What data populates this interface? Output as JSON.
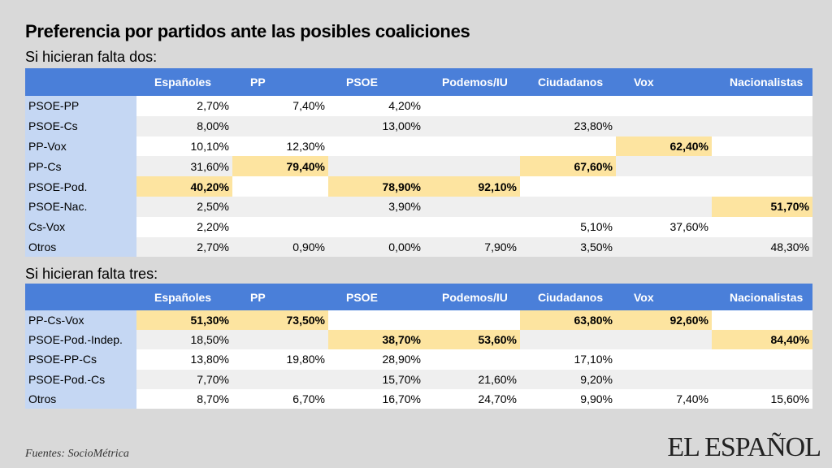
{
  "title": "Preferencia por partidos ante las posibles coaliciones",
  "chart_data": [
    {
      "type": "table",
      "subtitle": "Si hicieran falta dos:",
      "columns": [
        "Españoles",
        "PP",
        "PSOE",
        "Podemos/IU",
        "Ciudadanos",
        "Vox",
        "Nacionalistas"
      ],
      "rows": [
        {
          "label": "PSOE-PP",
          "values": [
            "2,70%",
            "7,40%",
            "4,20%",
            "",
            "",
            "",
            ""
          ],
          "highlight": [
            false,
            false,
            false,
            false,
            false,
            false,
            false
          ]
        },
        {
          "label": "PSOE-Cs",
          "values": [
            "8,00%",
            "",
            "13,00%",
            "",
            "23,80%",
            "",
            ""
          ],
          "highlight": [
            false,
            false,
            false,
            false,
            false,
            false,
            false
          ]
        },
        {
          "label": "PP-Vox",
          "values": [
            "10,10%",
            "12,30%",
            "",
            "",
            "",
            "62,40%",
            ""
          ],
          "highlight": [
            false,
            false,
            false,
            false,
            false,
            true,
            false
          ]
        },
        {
          "label": "PP-Cs",
          "values": [
            "31,60%",
            "79,40%",
            "",
            "",
            "67,60%",
            "",
            ""
          ],
          "highlight": [
            false,
            true,
            false,
            false,
            true,
            false,
            false
          ]
        },
        {
          "label": "PSOE-Pod.",
          "values": [
            "40,20%",
            "",
            "78,90%",
            "92,10%",
            "",
            "",
            ""
          ],
          "highlight": [
            true,
            false,
            true,
            true,
            false,
            false,
            false
          ]
        },
        {
          "label": "PSOE-Nac.",
          "values": [
            "2,50%",
            "",
            "3,90%",
            "",
            "",
            "",
            "51,70%"
          ],
          "highlight": [
            false,
            false,
            false,
            false,
            false,
            false,
            true
          ]
        },
        {
          "label": "Cs-Vox",
          "values": [
            "2,20%",
            "",
            "",
            "",
            "5,10%",
            "37,60%",
            ""
          ],
          "highlight": [
            false,
            false,
            false,
            false,
            false,
            false,
            false
          ]
        },
        {
          "label": "Otros",
          "values": [
            "2,70%",
            "0,90%",
            "0,00%",
            "7,90%",
            "3,50%",
            "",
            "48,30%"
          ],
          "highlight": [
            false,
            false,
            false,
            false,
            false,
            false,
            false
          ]
        }
      ]
    },
    {
      "type": "table",
      "subtitle": "Si hicieran falta tres:",
      "columns": [
        "Españoles",
        "PP",
        "PSOE",
        "Podemos/IU",
        "Ciudadanos",
        "Vox",
        "Nacionalistas"
      ],
      "rows": [
        {
          "label": "PP-Cs-Vox",
          "values": [
            "51,30%",
            "73,50%",
            "",
            "",
            "63,80%",
            "92,60%",
            ""
          ],
          "highlight": [
            true,
            true,
            false,
            false,
            true,
            true,
            false
          ]
        },
        {
          "label": "PSOE-Pod.-Indep.",
          "values": [
            "18,50%",
            "",
            "38,70%",
            "53,60%",
            "",
            "",
            "84,40%"
          ],
          "highlight": [
            false,
            false,
            true,
            true,
            false,
            false,
            true
          ]
        },
        {
          "label": "PSOE-PP-Cs",
          "values": [
            "13,80%",
            "19,80%",
            "28,90%",
            "",
            "17,10%",
            "",
            ""
          ],
          "highlight": [
            false,
            false,
            false,
            false,
            false,
            false,
            false
          ]
        },
        {
          "label": "PSOE-Pod.-Cs",
          "values": [
            "7,70%",
            "",
            "15,70%",
            "21,60%",
            "9,20%",
            "",
            ""
          ],
          "highlight": [
            false,
            false,
            false,
            false,
            false,
            false,
            false
          ]
        },
        {
          "label": "Otros",
          "values": [
            "8,70%",
            "6,70%",
            "16,70%",
            "24,70%",
            "9,90%",
            "7,40%",
            "15,60%"
          ],
          "highlight": [
            false,
            false,
            false,
            false,
            false,
            false,
            false
          ]
        }
      ]
    }
  ],
  "source": "Fuentes: SocioMétrica",
  "logo": "EL ESPAÑOL",
  "colors": {
    "header": "#4a7fd9",
    "rowlabel": "#c5d7f3",
    "highlight": "#fde4a0",
    "background": "#d9d9d9"
  }
}
